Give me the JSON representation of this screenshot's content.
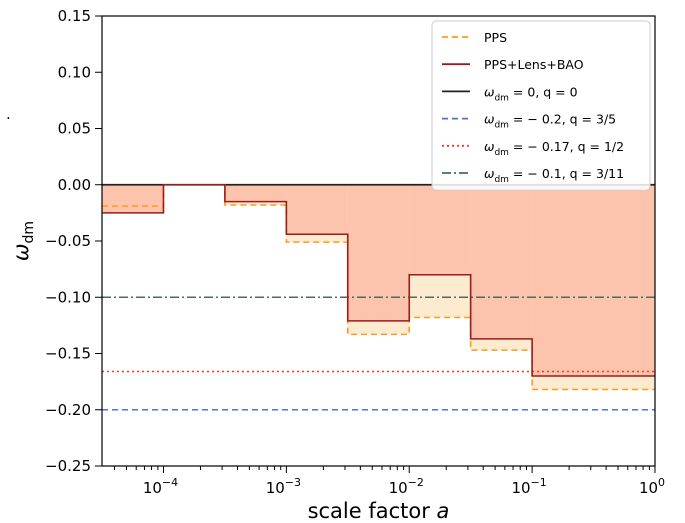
{
  "chart_data": {
    "type": "line",
    "xlabel": "scale factor a",
    "ylabel": "ω_dm",
    "xscale": "log",
    "xlim": [
      3.16e-05,
      1
    ],
    "ylim": [
      -0.25,
      0.15
    ],
    "grid": false,
    "legend_position": "top-right",
    "x_ticks": [
      {
        "value": 0.0001,
        "base": "10",
        "exp": "−4"
      },
      {
        "value": 0.001,
        "base": "10",
        "exp": "−3"
      },
      {
        "value": 0.01,
        "base": "10",
        "exp": "−2"
      },
      {
        "value": 0.1,
        "base": "10",
        "exp": "−1"
      },
      {
        "value": 1,
        "base": "10",
        "exp": "0"
      }
    ],
    "y_ticks": [
      {
        "value": 0.15,
        "label": "0.15"
      },
      {
        "value": 0.1,
        "label": "0.10"
      },
      {
        "value": 0.05,
        "label": "0.05"
      },
      {
        "value": 0.0,
        "label": "0.00"
      },
      {
        "value": -0.05,
        "label": "−0.05"
      },
      {
        "value": -0.1,
        "label": "−0.10"
      },
      {
        "value": -0.15,
        "label": "−0.15"
      },
      {
        "value": -0.2,
        "label": "−0.20"
      },
      {
        "value": -0.25,
        "label": "−0.25"
      }
    ],
    "bin_edges": [
      3.16e-05,
      0.0001,
      0.000316,
      0.001,
      0.00316,
      0.01,
      0.0316,
      0.1,
      1
    ],
    "series": [
      {
        "name": "PPS",
        "style": "dashed",
        "color": "#ff9a1f",
        "fill_color": "#fdebcf",
        "values": [
          -0.019,
          0.0,
          -0.018,
          -0.051,
          -0.133,
          -0.118,
          -0.147,
          -0.182
        ]
      },
      {
        "name": "PPS+Lens+BAO",
        "style": "solid",
        "color": "#9e1b1b",
        "fill_color": "#fcc4ad",
        "values": [
          -0.025,
          0.0,
          -0.015,
          -0.044,
          -0.121,
          -0.08,
          -0.137,
          -0.17
        ]
      },
      {
        "name": "ω_dm = 0, q = 0",
        "style": "solid",
        "color": "#222222",
        "value": 0.0
      },
      {
        "name": "ω_dm = − 0.2, q = 3/5",
        "style": "dashed",
        "color": "#4a74d9",
        "value": -0.2
      },
      {
        "name": "ω_dm = − 0.17, q = 1/2",
        "style": "dotted",
        "color": "#ef3b2c",
        "value": -0.166
      },
      {
        "name": "ω_dm = − 0.1, q = 3/11",
        "style": "dashdot",
        "color": "#4c6b5c",
        "value": -0.1
      }
    ],
    "legend": [
      {
        "label": "PPS",
        "style": "dashed",
        "color": "#ff9a1f"
      },
      {
        "label": "PPS+Lens+BAO",
        "style": "solid",
        "color": "#9e1b1b"
      },
      {
        "prefix": "ω",
        "sub": "dm",
        "suffix": " = 0, q = 0",
        "style": "solid",
        "color": "#222222"
      },
      {
        "prefix": "ω",
        "sub": "dm",
        "suffix": " = − 0.2, q = 3/5",
        "style": "dashed",
        "color": "#4a74d9"
      },
      {
        "prefix": "ω",
        "sub": "dm",
        "suffix": " = − 0.17, q = 1/2",
        "style": "dotted",
        "color": "#ef3b2c"
      },
      {
        "prefix": "ω",
        "sub": "dm",
        "suffix": " = − 0.1, q = 3/11",
        "style": "dashdot",
        "color": "#4c6b5c"
      }
    ],
    "stray_mark": "."
  }
}
